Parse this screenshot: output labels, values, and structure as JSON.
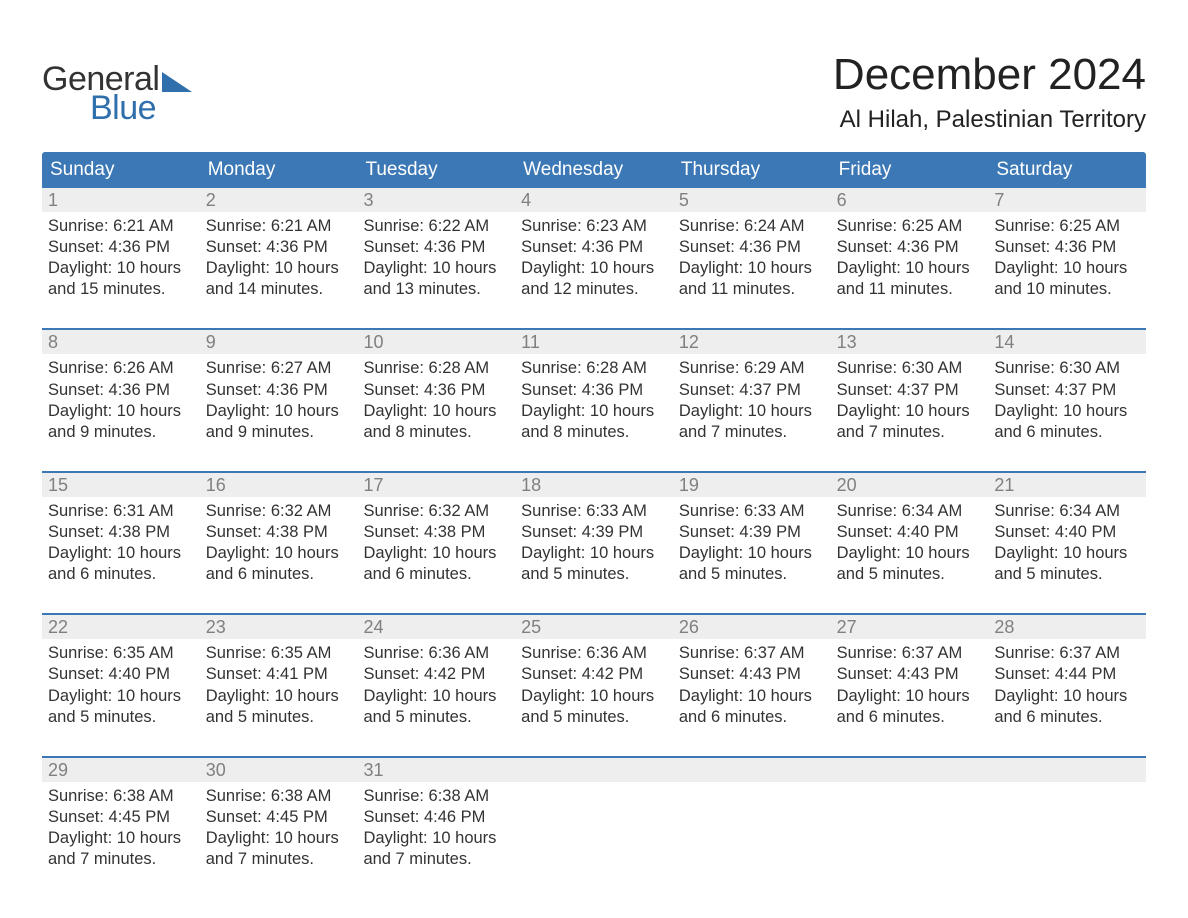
{
  "brand": {
    "part1": "General",
    "part2": "Blue"
  },
  "title": "December 2024",
  "location": "Al Hilah, Palestinian Territory",
  "colors": {
    "header_bg": "#3b78b5",
    "header_text": "#ffffff",
    "daynum_bg": "#eeeeee",
    "daynum_text": "#808080",
    "body_text": "#333333",
    "accent": "#2f6fac",
    "page_bg": "#ffffff"
  },
  "typography": {
    "title_fontsize": 44,
    "location_fontsize": 24,
    "dayheader_fontsize": 19,
    "daynum_fontsize": 18,
    "cell_fontsize": 16.5
  },
  "day_names": [
    "Sunday",
    "Monday",
    "Tuesday",
    "Wednesday",
    "Thursday",
    "Friday",
    "Saturday"
  ],
  "weeks": [
    [
      {
        "n": "1",
        "sr": "6:21 AM",
        "ss": "4:36 PM",
        "dl1": "10 hours",
        "dl2": "and 15 minutes."
      },
      {
        "n": "2",
        "sr": "6:21 AM",
        "ss": "4:36 PM",
        "dl1": "10 hours",
        "dl2": "and 14 minutes."
      },
      {
        "n": "3",
        "sr": "6:22 AM",
        "ss": "4:36 PM",
        "dl1": "10 hours",
        "dl2": "and 13 minutes."
      },
      {
        "n": "4",
        "sr": "6:23 AM",
        "ss": "4:36 PM",
        "dl1": "10 hours",
        "dl2": "and 12 minutes."
      },
      {
        "n": "5",
        "sr": "6:24 AM",
        "ss": "4:36 PM",
        "dl1": "10 hours",
        "dl2": "and 11 minutes."
      },
      {
        "n": "6",
        "sr": "6:25 AM",
        "ss": "4:36 PM",
        "dl1": "10 hours",
        "dl2": "and 11 minutes."
      },
      {
        "n": "7",
        "sr": "6:25 AM",
        "ss": "4:36 PM",
        "dl1": "10 hours",
        "dl2": "and 10 minutes."
      }
    ],
    [
      {
        "n": "8",
        "sr": "6:26 AM",
        "ss": "4:36 PM",
        "dl1": "10 hours",
        "dl2": "and 9 minutes."
      },
      {
        "n": "9",
        "sr": "6:27 AM",
        "ss": "4:36 PM",
        "dl1": "10 hours",
        "dl2": "and 9 minutes."
      },
      {
        "n": "10",
        "sr": "6:28 AM",
        "ss": "4:36 PM",
        "dl1": "10 hours",
        "dl2": "and 8 minutes."
      },
      {
        "n": "11",
        "sr": "6:28 AM",
        "ss": "4:36 PM",
        "dl1": "10 hours",
        "dl2": "and 8 minutes."
      },
      {
        "n": "12",
        "sr": "6:29 AM",
        "ss": "4:37 PM",
        "dl1": "10 hours",
        "dl2": "and 7 minutes."
      },
      {
        "n": "13",
        "sr": "6:30 AM",
        "ss": "4:37 PM",
        "dl1": "10 hours",
        "dl2": "and 7 minutes."
      },
      {
        "n": "14",
        "sr": "6:30 AM",
        "ss": "4:37 PM",
        "dl1": "10 hours",
        "dl2": "and 6 minutes."
      }
    ],
    [
      {
        "n": "15",
        "sr": "6:31 AM",
        "ss": "4:38 PM",
        "dl1": "10 hours",
        "dl2": "and 6 minutes."
      },
      {
        "n": "16",
        "sr": "6:32 AM",
        "ss": "4:38 PM",
        "dl1": "10 hours",
        "dl2": "and 6 minutes."
      },
      {
        "n": "17",
        "sr": "6:32 AM",
        "ss": "4:38 PM",
        "dl1": "10 hours",
        "dl2": "and 6 minutes."
      },
      {
        "n": "18",
        "sr": "6:33 AM",
        "ss": "4:39 PM",
        "dl1": "10 hours",
        "dl2": "and 5 minutes."
      },
      {
        "n": "19",
        "sr": "6:33 AM",
        "ss": "4:39 PM",
        "dl1": "10 hours",
        "dl2": "and 5 minutes."
      },
      {
        "n": "20",
        "sr": "6:34 AM",
        "ss": "4:40 PM",
        "dl1": "10 hours",
        "dl2": "and 5 minutes."
      },
      {
        "n": "21",
        "sr": "6:34 AM",
        "ss": "4:40 PM",
        "dl1": "10 hours",
        "dl2": "and 5 minutes."
      }
    ],
    [
      {
        "n": "22",
        "sr": "6:35 AM",
        "ss": "4:40 PM",
        "dl1": "10 hours",
        "dl2": "and 5 minutes."
      },
      {
        "n": "23",
        "sr": "6:35 AM",
        "ss": "4:41 PM",
        "dl1": "10 hours",
        "dl2": "and 5 minutes."
      },
      {
        "n": "24",
        "sr": "6:36 AM",
        "ss": "4:42 PM",
        "dl1": "10 hours",
        "dl2": "and 5 minutes."
      },
      {
        "n": "25",
        "sr": "6:36 AM",
        "ss": "4:42 PM",
        "dl1": "10 hours",
        "dl2": "and 5 minutes."
      },
      {
        "n": "26",
        "sr": "6:37 AM",
        "ss": "4:43 PM",
        "dl1": "10 hours",
        "dl2": "and 6 minutes."
      },
      {
        "n": "27",
        "sr": "6:37 AM",
        "ss": "4:43 PM",
        "dl1": "10 hours",
        "dl2": "and 6 minutes."
      },
      {
        "n": "28",
        "sr": "6:37 AM",
        "ss": "4:44 PM",
        "dl1": "10 hours",
        "dl2": "and 6 minutes."
      }
    ],
    [
      {
        "n": "29",
        "sr": "6:38 AM",
        "ss": "4:45 PM",
        "dl1": "10 hours",
        "dl2": "and 7 minutes."
      },
      {
        "n": "30",
        "sr": "6:38 AM",
        "ss": "4:45 PM",
        "dl1": "10 hours",
        "dl2": "and 7 minutes."
      },
      {
        "n": "31",
        "sr": "6:38 AM",
        "ss": "4:46 PM",
        "dl1": "10 hours",
        "dl2": "and 7 minutes."
      },
      null,
      null,
      null,
      null
    ]
  ],
  "labels": {
    "sunrise_prefix": "Sunrise: ",
    "sunset_prefix": "Sunset: ",
    "daylight_prefix": "Daylight: "
  }
}
